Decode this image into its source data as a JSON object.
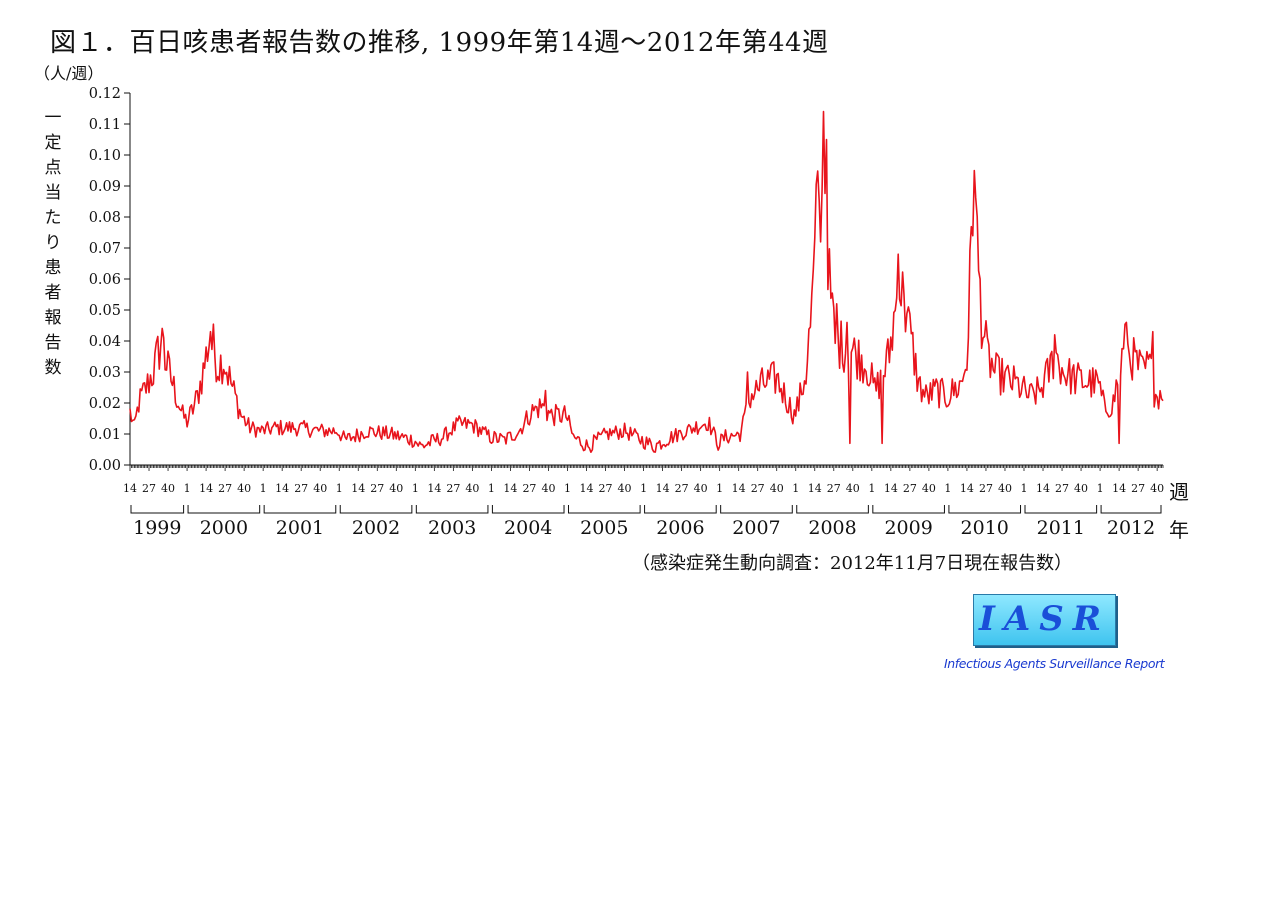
{
  "chart_data": {
    "type": "line",
    "title": "図１．百日咳患者報告数の推移, 1999年第14週〜2012年第44週",
    "unit": "（人/週）",
    "ylabel": "一定点当たり患者報告数",
    "xlabel_week": "週",
    "xlabel_year": "年",
    "source": "（感染症発生動向調査：2012年11月7日現在報告数）",
    "ylim": [
      0,
      0.12
    ],
    "yticks": [
      "0.00",
      "0.01",
      "0.02",
      "0.03",
      "0.04",
      "0.05",
      "0.06",
      "0.07",
      "0.08",
      "0.09",
      "0.10",
      "0.11",
      "0.12"
    ],
    "week_ticks": [
      "1",
      "14",
      "27",
      "40"
    ],
    "years": [
      "1999",
      "2000",
      "2001",
      "2002",
      "2003",
      "2004",
      "2005",
      "2006",
      "2007",
      "2008",
      "2009",
      "2010",
      "2011",
      "2012"
    ],
    "start": {
      "year": 1999,
      "week": 14
    },
    "end": {
      "year": 2012,
      "week": 44
    },
    "series": [
      {
        "color": "#e8141c",
        "anchors": [
          [
            1999,
            14,
            0.017
          ],
          [
            1999,
            17,
            0.012
          ],
          [
            1999,
            20,
            0.02
          ],
          [
            1999,
            25,
            0.025
          ],
          [
            1999,
            30,
            0.03
          ],
          [
            1999,
            33,
            0.036
          ],
          [
            1999,
            36,
            0.04
          ],
          [
            1999,
            38,
            0.034
          ],
          [
            1999,
            42,
            0.028
          ],
          [
            1999,
            46,
            0.022
          ],
          [
            1999,
            50,
            0.016
          ],
          [
            2000,
            1,
            0.014
          ],
          [
            2000,
            5,
            0.018
          ],
          [
            2000,
            8,
            0.022
          ],
          [
            2000,
            11,
            0.028
          ],
          [
            2000,
            14,
            0.035
          ],
          [
            2000,
            16,
            0.04
          ],
          [
            2000,
            19,
            0.038
          ],
          [
            2000,
            22,
            0.032
          ],
          [
            2000,
            26,
            0.034
          ],
          [
            2000,
            30,
            0.028
          ],
          [
            2000,
            34,
            0.022
          ],
          [
            2000,
            38,
            0.016
          ],
          [
            2000,
            44,
            0.012
          ],
          [
            2000,
            52,
            0.011
          ],
          [
            2001,
            10,
            0.012
          ],
          [
            2001,
            25,
            0.012
          ],
          [
            2001,
            40,
            0.011
          ],
          [
            2001,
            52,
            0.011
          ],
          [
            2002,
            5,
            0.008
          ],
          [
            2002,
            20,
            0.011
          ],
          [
            2002,
            35,
            0.01
          ],
          [
            2002,
            52,
            0.008
          ],
          [
            2003,
            5,
            0.006
          ],
          [
            2003,
            20,
            0.009
          ],
          [
            2003,
            30,
            0.013
          ],
          [
            2003,
            40,
            0.013
          ],
          [
            2003,
            52,
            0.009
          ],
          [
            2004,
            10,
            0.008
          ],
          [
            2004,
            20,
            0.011
          ],
          [
            2004,
            28,
            0.017
          ],
          [
            2004,
            35,
            0.019
          ],
          [
            2004,
            42,
            0.016
          ],
          [
            2004,
            52,
            0.016
          ],
          [
            2005,
            5,
            0.009
          ],
          [
            2005,
            15,
            0.006
          ],
          [
            2005,
            28,
            0.01
          ],
          [
            2005,
            40,
            0.011
          ],
          [
            2005,
            52,
            0.008
          ],
          [
            2006,
            8,
            0.006
          ],
          [
            2006,
            20,
            0.009
          ],
          [
            2006,
            35,
            0.012
          ],
          [
            2006,
            45,
            0.014
          ],
          [
            2006,
            52,
            0.007
          ],
          [
            2007,
            5,
            0.009
          ],
          [
            2007,
            15,
            0.01
          ],
          [
            2007,
            22,
            0.022
          ],
          [
            2007,
            30,
            0.026
          ],
          [
            2007,
            40,
            0.028
          ],
          [
            2007,
            48,
            0.02
          ],
          [
            2007,
            52,
            0.016
          ],
          [
            2008,
            3,
            0.02
          ],
          [
            2008,
            8,
            0.03
          ],
          [
            2008,
            12,
            0.05
          ],
          [
            2008,
            16,
            0.085
          ],
          [
            2008,
            19,
            0.108
          ],
          [
            2008,
            21,
            0.098
          ],
          [
            2008,
            24,
            0.058
          ],
          [
            2008,
            28,
            0.04
          ],
          [
            2008,
            35,
            0.038
          ],
          [
            2008,
            42,
            0.036
          ],
          [
            2008,
            50,
            0.032
          ],
          [
            2009,
            3,
            0.024
          ],
          [
            2009,
            8,
            0.028
          ],
          [
            2009,
            13,
            0.036
          ],
          [
            2009,
            17,
            0.05
          ],
          [
            2009,
            20,
            0.058
          ],
          [
            2009,
            24,
            0.05
          ],
          [
            2009,
            28,
            0.04
          ],
          [
            2009,
            33,
            0.026
          ],
          [
            2009,
            38,
            0.022
          ],
          [
            2009,
            45,
            0.024
          ],
          [
            2009,
            52,
            0.022
          ],
          [
            2010,
            5,
            0.024
          ],
          [
            2010,
            10,
            0.026
          ],
          [
            2010,
            14,
            0.034
          ],
          [
            2010,
            17,
            0.07
          ],
          [
            2010,
            19,
            0.09
          ],
          [
            2010,
            21,
            0.07
          ],
          [
            2010,
            24,
            0.048
          ],
          [
            2010,
            28,
            0.035
          ],
          [
            2010,
            33,
            0.03
          ],
          [
            2010,
            40,
            0.028
          ],
          [
            2010,
            48,
            0.026
          ],
          [
            2011,
            5,
            0.022
          ],
          [
            2011,
            12,
            0.024
          ],
          [
            2011,
            18,
            0.03
          ],
          [
            2011,
            22,
            0.036
          ],
          [
            2011,
            28,
            0.03
          ],
          [
            2011,
            35,
            0.028
          ],
          [
            2011,
            42,
            0.027
          ],
          [
            2011,
            52,
            0.026
          ],
          [
            2012,
            4,
            0.018
          ],
          [
            2012,
            10,
            0.02
          ],
          [
            2012,
            14,
            0.03
          ],
          [
            2012,
            18,
            0.038
          ],
          [
            2012,
            24,
            0.034
          ],
          [
            2012,
            30,
            0.03
          ],
          [
            2012,
            35,
            0.032
          ],
          [
            2012,
            38,
            0.024
          ],
          [
            2012,
            40,
            0.022
          ],
          [
            2012,
            44,
            0.025
          ]
        ],
        "spikes": [
          [
            1999,
            37,
            0.041
          ],
          [
            2000,
            17,
            0.043
          ],
          [
            2008,
            18,
            0.072
          ],
          [
            2008,
            20,
            0.114
          ],
          [
            2008,
            22,
            0.105
          ],
          [
            2008,
            29,
            0.052
          ],
          [
            2008,
            36,
            0.046
          ],
          [
            2009,
            19,
            0.068
          ],
          [
            2009,
            23,
            0.055
          ],
          [
            2010,
            19,
            0.095
          ],
          [
            2010,
            23,
            0.06
          ],
          [
            2011,
            22,
            0.042
          ],
          [
            2012,
            14,
            0.007
          ],
          [
            2012,
            19,
            0.046
          ],
          [
            2012,
            37,
            0.043
          ],
          [
            2008,
            38,
            0.007
          ],
          [
            2009,
            8,
            0.007
          ],
          [
            2007,
            20,
            0.03
          ],
          [
            2004,
            38,
            0.024
          ]
        ]
      }
    ]
  },
  "logo": {
    "text": "IASR",
    "subtitle": "Infectious Agents Surveillance Report",
    "bg_color": "#5fd4f7",
    "text_color": "#1a4fd8"
  }
}
